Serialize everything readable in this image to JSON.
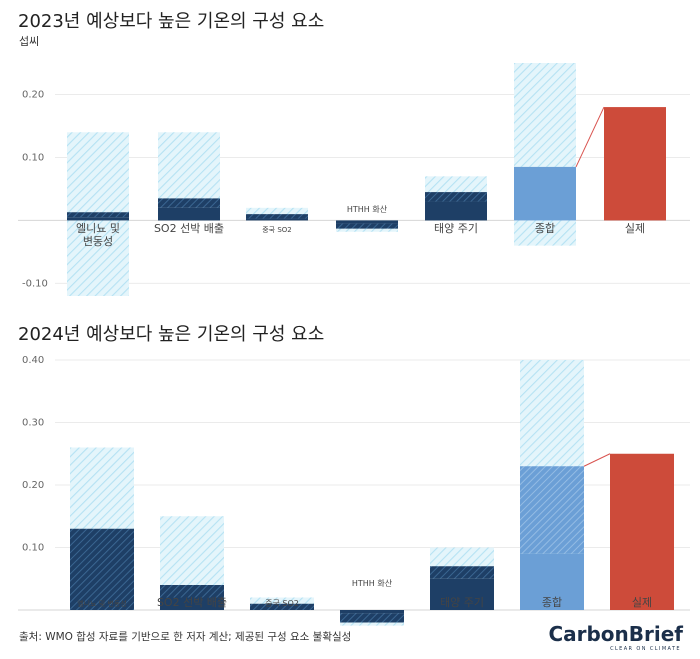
{
  "colors": {
    "light": "#e4f5fb",
    "light_hatch": "#b5e2f3",
    "dark": "#1e3f66",
    "dark_hatch": "#3d6a96",
    "mid": "#6b9fd6",
    "mid_hatch": "#98bfe6",
    "actual": "#cd4b3a",
    "connector": "#d9534f"
  },
  "chart_data": [
    {
      "type": "bar",
      "title": "2023년 예상보다 높은 기온의 구성 요소",
      "ylabel": "섭씨",
      "ylim": [
        -0.12,
        0.25
      ],
      "yticks": [
        -0.1,
        0.1,
        0.2
      ],
      "tick_labels": [
        "-0.10",
        "0.10",
        "0.20"
      ],
      "categories": [
        "엘니뇨 및 변동성",
        "SO2 선박 배출",
        "중국 SO2",
        "HTHH 화산",
        "태양 주기",
        "종합",
        "실제"
      ],
      "series": [
        {
          "range": "uncertainty",
          "values": [
            [
              -0.12,
              0.14
            ],
            [
              0,
              0.14
            ],
            [
              0,
              0.02
            ],
            [
              -0.018,
              0
            ],
            [
              0,
              0.07
            ],
            [
              -0.04,
              0.25
            ],
            null
          ]
        },
        {
          "range": "hatched_upper",
          "values": [
            [
              0.005,
              0.013
            ],
            [
              0.02,
              0.035
            ],
            [
              0.003,
              0.01
            ],
            [
              -0.013,
              -0.005
            ],
            [
              0.03,
              0.045
            ],
            null,
            null
          ]
        },
        {
          "range": "central",
          "values": [
            [
              0,
              0.005
            ],
            [
              0,
              0.02
            ],
            [
              0,
              0.003
            ],
            [
              -0.005,
              0
            ],
            [
              0,
              0.03
            ],
            [
              0,
              0.085
            ],
            [
              0,
              0.18
            ]
          ]
        }
      ]
    },
    {
      "type": "bar",
      "title": "2024년 예상보다 높은 기온의 구성 요소",
      "ylabel": "",
      "ylim": [
        0,
        0.4
      ],
      "yticks": [
        0.1,
        0.2,
        0.3,
        0.4
      ],
      "tick_labels": [
        "0.10",
        "0.20",
        "0.30",
        "0.40"
      ],
      "categories": [
        "엘니뇨 및 변동성",
        "SO2 선박 배출",
        "중국 SO2",
        "HTHH 화산",
        "태양 주기",
        "종합",
        "실제"
      ],
      "series": [
        {
          "range": "uncertainty",
          "values": [
            [
              0,
              0.26
            ],
            [
              0,
              0.15
            ],
            [
              0,
              0.02
            ],
            [
              -0.025,
              0
            ],
            [
              0,
              0.1
            ],
            [
              0,
              0.4
            ],
            null
          ]
        },
        {
          "range": "hatched_upper",
          "values": [
            [
              0,
              0.13
            ],
            [
              0.02,
              0.04
            ],
            [
              0,
              0.01
            ],
            [
              -0.02,
              -0.005
            ],
            [
              0.05,
              0.07
            ],
            [
              0.09,
              0.23
            ],
            null
          ]
        },
        {
          "range": "central",
          "values": [
            null,
            [
              0,
              0.02
            ],
            null,
            [
              -0.005,
              0
            ],
            [
              0,
              0.05
            ],
            [
              0,
              0.09
            ],
            [
              0,
              0.25
            ]
          ]
        }
      ]
    }
  ],
  "footer": {
    "source": "출처: WMO 합성 자료를 기반으로 한 저자 계산; 제공된 구성 요소 불확실성",
    "logo": "CarbonBrief",
    "logo_tagline": "CLEAR ON CLIMATE"
  }
}
